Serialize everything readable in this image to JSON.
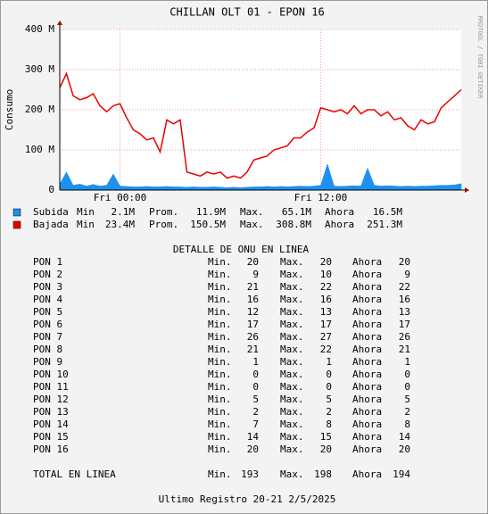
{
  "chart_data": {
    "type": "line",
    "title": "CHILLAN OLT 01 - EPON 16",
    "y_label": "Consumo",
    "side_text": "RRDTOOL / TOBI OETIKER",
    "categories": [
      null,
      null,
      null,
      null,
      null,
      null,
      null,
      null,
      null,
      "Fri 00:00",
      null,
      null,
      null,
      null,
      null,
      null,
      null,
      null,
      null,
      null,
      null,
      null,
      null,
      null,
      null,
      null,
      null,
      null,
      null,
      null,
      null,
      null,
      null,
      null,
      null,
      null,
      null,
      null,
      null,
      "Fri 12:00",
      null,
      null,
      null,
      null,
      null,
      null,
      null,
      null,
      null,
      null,
      null,
      null,
      null,
      null,
      null,
      null,
      null,
      null,
      null,
      null,
      null
    ],
    "ylim": [
      0,
      400
    ],
    "yticks": [
      0,
      {
        "value": 100,
        "label": "100 M"
      },
      {
        "value": 200,
        "label": "200 M"
      },
      {
        "value": 300,
        "label": "300 M"
      },
      {
        "value": 400,
        "label": "400 M"
      }
    ],
    "grid": true,
    "series": [
      {
        "name": "Subida",
        "color": "#1e90f0",
        "fill": "area",
        "stats": [
          {
            "label": "Min",
            "value": "2.1M"
          },
          {
            "label": "Prom.",
            "value": "11.9M"
          },
          {
            "label": "Max.",
            "value": "65.1M"
          },
          {
            "label": "Ahora",
            "value": "16.5M"
          }
        ],
        "values": [
          15,
          45,
          12,
          15,
          10,
          14,
          10,
          12,
          40,
          10,
          9,
          8,
          8,
          9,
          8,
          8,
          9,
          8,
          8,
          7,
          8,
          7,
          7,
          8,
          7,
          6,
          7,
          6,
          7,
          8,
          8,
          9,
          8,
          9,
          8,
          9,
          10,
          9,
          10,
          12,
          65,
          10,
          9,
          10,
          11,
          10,
          55,
          12,
          10,
          11,
          10,
          9,
          10,
          9,
          10,
          10,
          11,
          12,
          12,
          13,
          16
        ]
      },
      {
        "name": "Bajada",
        "color": "#e80000",
        "fill": "line",
        "stats": [
          {
            "label": "Min",
            "value": "23.4M"
          },
          {
            "label": "Prom.",
            "value": "150.5M"
          },
          {
            "label": "Max.",
            "value": "308.8M"
          },
          {
            "label": "Ahora",
            "value": "251.3M"
          }
        ],
        "values": [
          255,
          290,
          235,
          225,
          230,
          240,
          210,
          195,
          210,
          215,
          180,
          150,
          140,
          125,
          130,
          95,
          175,
          165,
          175,
          45,
          40,
          35,
          45,
          40,
          45,
          30,
          35,
          30,
          45,
          75,
          80,
          85,
          100,
          105,
          110,
          130,
          130,
          145,
          155,
          205,
          200,
          195,
          200,
          190,
          210,
          190,
          200,
          200,
          185,
          195,
          175,
          180,
          160,
          150,
          175,
          165,
          170,
          205,
          220,
          235,
          250
        ]
      }
    ]
  },
  "detail": {
    "title": "DETALLE DE ONU EN LINEA",
    "columns": [
      "Min.",
      "Max.",
      "Ahora"
    ],
    "rows": [
      [
        "PON 1",
        "20",
        "20",
        "20"
      ],
      [
        "PON 2",
        "9",
        "10",
        "9"
      ],
      [
        "PON 3",
        "21",
        "22",
        "22"
      ],
      [
        "PON 4",
        "16",
        "16",
        "16"
      ],
      [
        "PON 5",
        "12",
        "13",
        "13"
      ],
      [
        "PON 6",
        "17",
        "17",
        "17"
      ],
      [
        "PON 7",
        "26",
        "27",
        "26"
      ],
      [
        "PON 8",
        "21",
        "22",
        "21"
      ],
      [
        "PON 9",
        "1",
        "1",
        "1"
      ],
      [
        "PON 10",
        "0",
        "0",
        "0"
      ],
      [
        "PON 11",
        "0",
        "0",
        "0"
      ],
      [
        "PON 12",
        "5",
        "5",
        "5"
      ],
      [
        "PON 13",
        "2",
        "2",
        "2"
      ],
      [
        "PON 14",
        "7",
        "8",
        "8"
      ],
      [
        "PON 15",
        "14",
        "15",
        "14"
      ],
      [
        "PON 16",
        "20",
        "20",
        "20"
      ]
    ],
    "total": [
      "TOTAL EN LINEA",
      "193",
      "198",
      "194"
    ]
  },
  "footer": "Ultimo Registro 20-21 2/5/2025"
}
